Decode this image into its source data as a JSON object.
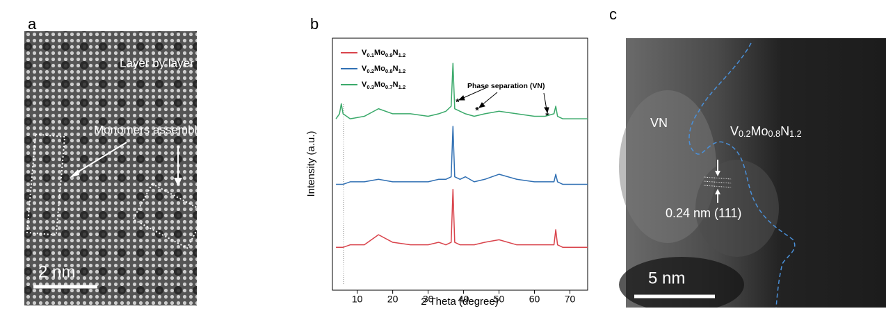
{
  "panel_labels": [
    "a",
    "b",
    "c"
  ],
  "panel_a": {
    "annotations": [
      "Layer by layer growth",
      "Monomers assembling"
    ],
    "scale_bar": "2 nm"
  },
  "chart_data": {
    "type": "line",
    "y_label": "Intensity (a.u.)",
    "x_label": "2 Theta (degree)",
    "x": [
      4,
      5,
      5.5,
      6,
      8,
      12,
      16,
      20,
      25,
      30,
      33,
      35,
      36.5,
      37,
      37.5,
      39,
      40.5,
      43,
      46,
      50,
      55,
      60,
      63,
      65.5,
      66,
      66.5,
      68,
      75
    ],
    "series": [
      {
        "name": "V0.1Mo0.9N1.2",
        "color": "#d9434b",
        "values": [
          17,
          17,
          17,
          17,
          18,
          18,
          22,
          19,
          18,
          18,
          19,
          18,
          19,
          40,
          19,
          18,
          18,
          18,
          19,
          20,
          18,
          18,
          18,
          18,
          24,
          18,
          17,
          17
        ]
      },
      {
        "name": "V0.2Mo0.8N1.2",
        "color": "#2f6fb3",
        "values": [
          42,
          42,
          42,
          42,
          43,
          43,
          44,
          43,
          43,
          43,
          44,
          44,
          45,
          65,
          45,
          44,
          45,
          43,
          44,
          46,
          44,
          43,
          43,
          43,
          46,
          43,
          42,
          42
        ]
      },
      {
        "name": "V0.3Mo0.7N1.2",
        "color": "#3aa96a",
        "values": [
          68,
          70,
          74,
          70,
          68,
          69,
          72,
          70,
          70,
          69,
          70,
          71,
          73,
          90,
          72,
          71,
          70,
          69,
          70,
          71,
          70,
          69,
          69,
          70,
          73,
          69,
          68,
          68
        ]
      }
    ],
    "xlim": [
      3,
      75
    ],
    "ylim": [
      0,
      100
    ],
    "xticks": [
      10,
      20,
      30,
      40,
      50,
      60,
      70
    ],
    "annotations": [
      "Phase separation (VN)",
      "*",
      "*",
      "*"
    ]
  },
  "panel_c": {
    "annotations": [
      "VN",
      "V0.2Mo0.8N1.2",
      "0.24 nm (111)"
    ],
    "scale_bar": "5 nm"
  }
}
